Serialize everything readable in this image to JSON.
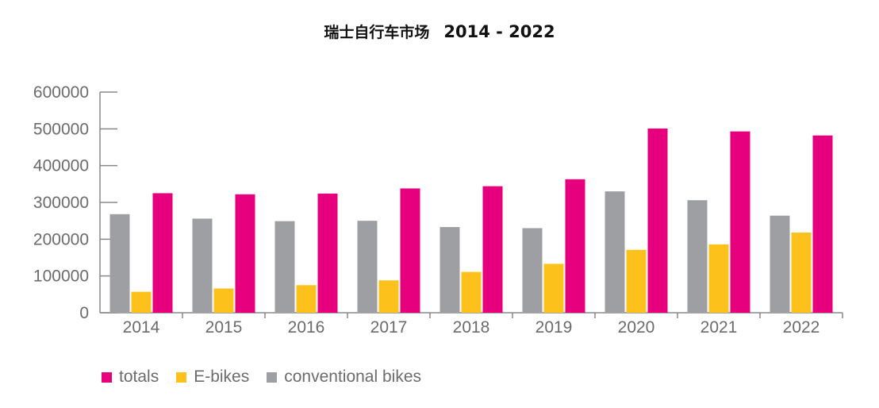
{
  "title": {
    "text_zh": "瑞士自行车市场",
    "years": "2014 - 2022"
  },
  "colors": {
    "totals": "#e6007e",
    "ebikes": "#fcc21b",
    "conventional": "#9d9fa2",
    "axis": "#888888",
    "text": "#6b6b6b"
  },
  "chart_data": {
    "type": "bar",
    "title": "瑞士自行车市场 2014 - 2022",
    "categories": [
      "2014",
      "2015",
      "2016",
      "2017",
      "2018",
      "2019",
      "2020",
      "2021",
      "2022"
    ],
    "series": [
      {
        "name": "conventional bikes",
        "values": [
          268000,
          256000,
          249000,
          250000,
          233000,
          230000,
          330000,
          306000,
          264000
        ]
      },
      {
        "name": "E-bikes",
        "values": [
          57000,
          66000,
          75000,
          88000,
          111000,
          133000,
          171000,
          186000,
          218000
        ]
      },
      {
        "name": "totals",
        "values": [
          325000,
          322000,
          324000,
          338000,
          344000,
          363000,
          501000,
          493000,
          482000
        ]
      }
    ],
    "yticks": [
      "0",
      "100000",
      "200000",
      "300000",
      "400000",
      "500000",
      "600000"
    ],
    "ylim": [
      0,
      600000
    ],
    "xlabel": "",
    "ylabel": "",
    "grid": false,
    "legend_placement": "bottom-left"
  },
  "legend": [
    {
      "label": "totals",
      "color": "#e6007e"
    },
    {
      "label": "E-bikes",
      "color": "#fcc21b"
    },
    {
      "label": "conventional bikes",
      "color": "#9d9fa2"
    }
  ]
}
